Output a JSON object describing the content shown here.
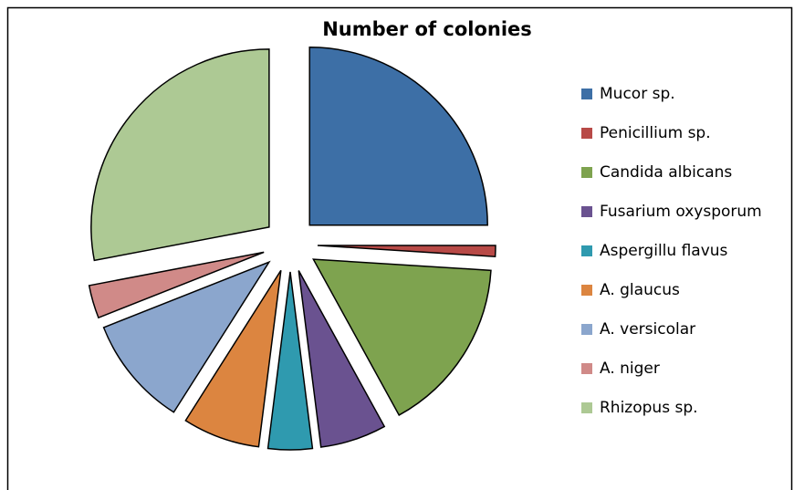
{
  "chart_data": {
    "type": "pie",
    "title": "Number of colonies",
    "categories": [
      "Mucor sp.",
      "Penicillium sp.",
      "Candida albicans",
      "Fusarium oxysporum",
      "Aspergillu flavus",
      "A. glaucus",
      "A. versicolar",
      "A. niger",
      "Rhizopus sp."
    ],
    "values": [
      25,
      1,
      16,
      6,
      4,
      7,
      10,
      3,
      28
    ],
    "colors": [
      "#3d6fa6",
      "#b84a47",
      "#7ea34f",
      "#6a5290",
      "#2f9aaf",
      "#dc8540",
      "#8ba6cd",
      "#d08a88",
      "#adc994"
    ],
    "legend": "right"
  }
}
